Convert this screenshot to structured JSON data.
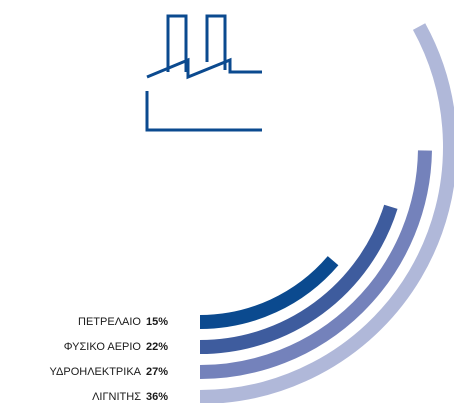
{
  "chart_data": {
    "type": "radial_bar",
    "categories": [
      "ΠΕΤΡΕΛΑΙΟ",
      "ΦΥΣΙΚΟ ΑΕΡΙΟ",
      "ΥΔΡΟΗΛΕΚΤΡΙΚΑ",
      "ΛΙΓΝΙΤΗΣ"
    ],
    "values": [
      15,
      22,
      27,
      36
    ],
    "value_labels": [
      "15%",
      "22%",
      "27%",
      "36%"
    ],
    "colors": [
      "#0b4a8f",
      "#3e5c9e",
      "#7482bb",
      "#b0b8d9"
    ]
  }
}
